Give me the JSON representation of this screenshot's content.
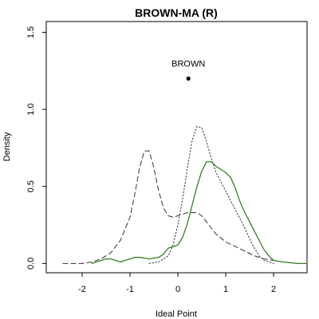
{
  "chart_data": {
    "type": "line",
    "title": "BROWN-MA (R)",
    "xlabel": "Ideal Point",
    "ylabel": "Density",
    "xlim": [
      -2.75,
      2.7
    ],
    "ylim": [
      -0.06,
      1.57
    ],
    "xticks": [
      -2,
      -1,
      0,
      1,
      2
    ],
    "xtick_labels": [
      "-2",
      "-1",
      "0",
      "1",
      "2"
    ],
    "yticks": [
      0.0,
      0.5,
      1.0,
      1.5
    ],
    "ytick_labels": [
      "0.0",
      "0.5",
      "1.0",
      "1.5"
    ],
    "grid": false,
    "colors": {
      "dashed": "#333333",
      "dotted": "#333333",
      "solid": "#3a7d2a",
      "point": "#000000"
    },
    "series": [
      {
        "style": "dashed",
        "points": [
          [
            -2.4,
            0.0
          ],
          [
            -2.0,
            0.0
          ],
          [
            -1.8,
            0.01
          ],
          [
            -1.6,
            0.03
          ],
          [
            -1.4,
            0.07
          ],
          [
            -1.2,
            0.15
          ],
          [
            -1.0,
            0.3
          ],
          [
            -0.9,
            0.45
          ],
          [
            -0.8,
            0.62
          ],
          [
            -0.7,
            0.73
          ],
          [
            -0.6,
            0.73
          ],
          [
            -0.5,
            0.62
          ],
          [
            -0.4,
            0.47
          ],
          [
            -0.3,
            0.36
          ],
          [
            -0.2,
            0.31
          ],
          [
            -0.1,
            0.3
          ],
          [
            0.0,
            0.31
          ],
          [
            0.1,
            0.32
          ],
          [
            0.2,
            0.33
          ],
          [
            0.3,
            0.33
          ],
          [
            0.4,
            0.33
          ],
          [
            0.5,
            0.31
          ],
          [
            0.6,
            0.27
          ],
          [
            0.8,
            0.19
          ],
          [
            1.0,
            0.14
          ],
          [
            1.2,
            0.11
          ],
          [
            1.4,
            0.08
          ],
          [
            1.6,
            0.05
          ],
          [
            1.8,
            0.03
          ],
          [
            2.0,
            0.02
          ],
          [
            2.2,
            0.01
          ],
          [
            2.5,
            0.0
          ]
        ]
      },
      {
        "style": "dotted",
        "points": [
          [
            -0.6,
            0.0
          ],
          [
            -0.4,
            0.01
          ],
          [
            -0.2,
            0.05
          ],
          [
            -0.1,
            0.12
          ],
          [
            0.0,
            0.25
          ],
          [
            0.1,
            0.42
          ],
          [
            0.2,
            0.62
          ],
          [
            0.3,
            0.8
          ],
          [
            0.4,
            0.89
          ],
          [
            0.5,
            0.88
          ],
          [
            0.6,
            0.79
          ],
          [
            0.7,
            0.68
          ],
          [
            0.8,
            0.59
          ],
          [
            0.9,
            0.53
          ],
          [
            1.0,
            0.47
          ],
          [
            1.1,
            0.41
          ],
          [
            1.2,
            0.35
          ],
          [
            1.3,
            0.29
          ],
          [
            1.4,
            0.23
          ],
          [
            1.5,
            0.16
          ],
          [
            1.6,
            0.1
          ],
          [
            1.7,
            0.05
          ],
          [
            1.8,
            0.02
          ],
          [
            2.0,
            0.0
          ]
        ]
      },
      {
        "style": "solid",
        "points": [
          [
            -1.8,
            0.0
          ],
          [
            -1.6,
            0.02
          ],
          [
            -1.5,
            0.03
          ],
          [
            -1.4,
            0.03
          ],
          [
            -1.3,
            0.02
          ],
          [
            -1.2,
            0.01
          ],
          [
            -1.1,
            0.02
          ],
          [
            -1.0,
            0.03
          ],
          [
            -0.9,
            0.04
          ],
          [
            -0.8,
            0.04
          ],
          [
            -0.6,
            0.03
          ],
          [
            -0.4,
            0.04
          ],
          [
            -0.3,
            0.06
          ],
          [
            -0.2,
            0.1
          ],
          [
            0.0,
            0.12
          ],
          [
            0.1,
            0.17
          ],
          [
            0.2,
            0.26
          ],
          [
            0.3,
            0.38
          ],
          [
            0.4,
            0.5
          ],
          [
            0.5,
            0.6
          ],
          [
            0.6,
            0.66
          ],
          [
            0.7,
            0.66
          ],
          [
            0.8,
            0.63
          ],
          [
            0.9,
            0.61
          ],
          [
            1.0,
            0.59
          ],
          [
            1.1,
            0.56
          ],
          [
            1.2,
            0.49
          ],
          [
            1.3,
            0.4
          ],
          [
            1.4,
            0.33
          ],
          [
            1.5,
            0.27
          ],
          [
            1.6,
            0.21
          ],
          [
            1.7,
            0.15
          ],
          [
            1.8,
            0.09
          ],
          [
            1.9,
            0.05
          ],
          [
            2.0,
            0.02
          ],
          [
            2.2,
            0.01
          ],
          [
            2.5,
            0.0
          ],
          [
            2.7,
            0.0
          ]
        ]
      }
    ],
    "annotation": {
      "label": "BROWN",
      "x": 0.22,
      "y": 1.2
    }
  }
}
